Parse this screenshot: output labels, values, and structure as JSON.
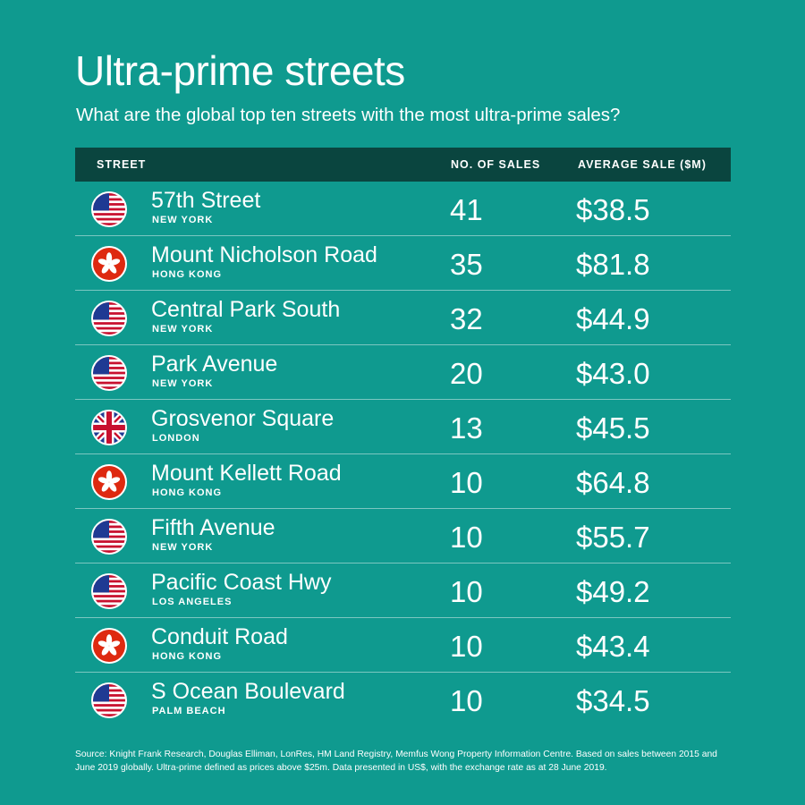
{
  "title": "Ultra-prime streets",
  "subtitle": "What are the global top ten streets with the most ultra-prime sales?",
  "colors": {
    "background": "#0f9a8f",
    "header": "#0a453f",
    "text": "#ffffff"
  },
  "chart_data": {
    "type": "table",
    "columns": [
      "STREET",
      "NO. OF SALES",
      "AVERAGE SALE ($M)"
    ],
    "rows": [
      {
        "street": "57th Street",
        "city": "NEW YORK",
        "sales": "41",
        "avg": "$38.5",
        "flag": "us-flag-icon"
      },
      {
        "street": "Mount Nicholson Road",
        "city": "HONG KONG",
        "sales": "35",
        "avg": "$81.8",
        "flag": "hk-flag-icon"
      },
      {
        "street": "Central Park South",
        "city": "NEW YORK",
        "sales": "32",
        "avg": "$44.9",
        "flag": "us-flag-icon"
      },
      {
        "street": "Park Avenue",
        "city": "NEW YORK",
        "sales": "20",
        "avg": "$43.0",
        "flag": "us-flag-icon"
      },
      {
        "street": "Grosvenor Square",
        "city": "LONDON",
        "sales": "13",
        "avg": "$45.5",
        "flag": "uk-flag-icon"
      },
      {
        "street": "Mount Kellett Road",
        "city": "HONG KONG",
        "sales": "10",
        "avg": "$64.8",
        "flag": "hk-flag-icon"
      },
      {
        "street": "Fifth Avenue",
        "city": "NEW YORK",
        "sales": "10",
        "avg": "$55.7",
        "flag": "us-flag-icon"
      },
      {
        "street": "Pacific Coast Hwy",
        "city": "LOS ANGELES",
        "sales": "10",
        "avg": "$49.2",
        "flag": "us-flag-icon"
      },
      {
        "street": "Conduit Road",
        "city": "HONG KONG",
        "sales": "10",
        "avg": "$43.4",
        "flag": "hk-flag-icon"
      },
      {
        "street": "S Ocean Boulevard",
        "city": "PALM BEACH",
        "sales": "10",
        "avg": "$34.5",
        "flag": "us-flag-icon"
      }
    ]
  },
  "footnote": "Source: Knight Frank Research, Douglas Elliman, LonRes, HM Land Registry, Memfus Wong Property Information Centre. Based on sales between 2015 and June 2019 globally. Ultra-prime defined as prices above $25m. Data presented in US$, with the exchange rate as at 28 June 2019."
}
